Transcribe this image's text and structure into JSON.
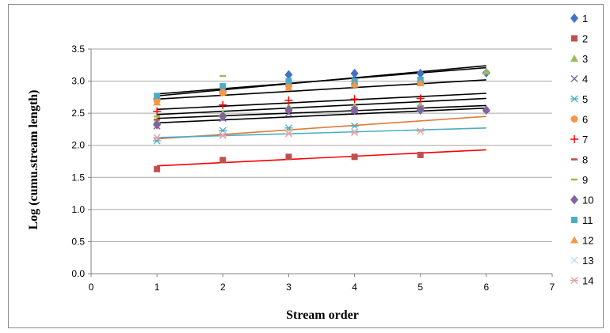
{
  "chart_data": {
    "type": "scatter",
    "title": "",
    "xlabel": "Stream order",
    "ylabel": "Log (cumu.stream length)",
    "xlim": [
      0,
      7
    ],
    "ylim": [
      0.0,
      3.5
    ],
    "xticks": [
      "0",
      "1",
      "2",
      "3",
      "4",
      "5",
      "6",
      "7"
    ],
    "yticks": [
      "0.0",
      "0.5",
      "1.0",
      "1.5",
      "2.0",
      "2.5",
      "3.0",
      "3.5"
    ],
    "grid": "horizontal",
    "legend_position": "right",
    "series": [
      {
        "name": "1",
        "marker": "diamond",
        "color": "#4472c4",
        "x": [
          1,
          2,
          3,
          4,
          5,
          6
        ],
        "y": [
          2.72,
          2.84,
          3.1,
          3.12,
          3.12,
          3.13
        ]
      },
      {
        "name": "2",
        "marker": "square",
        "color": "#c0504d",
        "x": [
          1,
          2,
          3,
          4,
          5
        ],
        "y": [
          1.63,
          1.77,
          1.82,
          1.82,
          1.85
        ]
      },
      {
        "name": "3",
        "marker": "triangle",
        "color": "#9bbb59",
        "x": [
          1,
          2,
          3,
          4,
          5,
          6
        ],
        "y": [
          2.38,
          2.5,
          2.6,
          2.6,
          2.63,
          3.15
        ]
      },
      {
        "name": "4",
        "marker": "x",
        "color": "#8064a2",
        "x": [
          1,
          2,
          3,
          4,
          5
        ],
        "y": [
          2.3,
          2.42,
          2.5,
          2.55,
          2.57
        ]
      },
      {
        "name": "5",
        "marker": "star",
        "color": "#4bacc6",
        "x": [
          1,
          2,
          3,
          4
        ],
        "y": [
          2.07,
          2.23,
          2.27,
          2.3
        ]
      },
      {
        "name": "6",
        "marker": "circle",
        "color": "#f79646",
        "x": [
          1,
          2,
          3,
          4,
          5
        ],
        "y": [
          2.7,
          2.82,
          2.93,
          2.95,
          2.98
        ]
      },
      {
        "name": "7",
        "marker": "plus",
        "color": "#ff0000",
        "x": [
          1,
          2,
          3,
          4,
          5
        ],
        "y": [
          2.53,
          2.63,
          2.7,
          2.72,
          2.73
        ]
      },
      {
        "name": "8",
        "marker": "dash",
        "color": "#c0504d",
        "x": [
          1,
          2,
          3,
          4,
          5,
          6
        ],
        "y": [
          2.4,
          2.47,
          2.53,
          2.53,
          2.55,
          2.53
        ]
      },
      {
        "name": "9",
        "marker": "dash",
        "color": "#9bbb59",
        "x": [
          1,
          2,
          3
        ],
        "y": [
          2.45,
          3.08,
          3.0
        ]
      },
      {
        "name": "10",
        "marker": "diamond",
        "color": "#8064a2",
        "x": [
          1,
          2,
          3,
          4,
          5,
          6
        ],
        "y": [
          2.32,
          2.45,
          2.55,
          2.55,
          2.55,
          2.55
        ]
      },
      {
        "name": "11",
        "marker": "square",
        "color": "#4bacc6",
        "x": [
          1,
          2,
          3,
          4,
          5
        ],
        "y": [
          2.77,
          2.92,
          3.0,
          3.0,
          3.02
        ]
      },
      {
        "name": "12",
        "marker": "triangle",
        "color": "#f79646",
        "x": [
          1,
          2,
          3,
          4,
          5
        ],
        "y": [
          2.67,
          2.83,
          2.9,
          2.95,
          2.97
        ]
      },
      {
        "name": "13",
        "marker": "x",
        "color": "#c5d9f1",
        "x": [
          1,
          2,
          3,
          4
        ],
        "y": [
          2.12,
          2.17,
          2.2,
          2.22
        ]
      },
      {
        "name": "14",
        "marker": "star",
        "color": "#e6a0a0",
        "x": [
          1,
          2,
          3,
          4,
          5
        ],
        "y": [
          2.12,
          2.15,
          2.18,
          2.2,
          2.22
        ]
      }
    ],
    "trendlines": [
      {
        "series": "1",
        "color": "#000000",
        "x": [
          1,
          6
        ],
        "y": [
          2.77,
          3.24
        ]
      },
      {
        "series": "11",
        "color": "#000000",
        "x": [
          1,
          6
        ],
        "y": [
          2.8,
          3.21
        ]
      },
      {
        "series": "6",
        "color": "#000000",
        "x": [
          1,
          6
        ],
        "y": [
          2.72,
          3.02
        ]
      },
      {
        "series": "7",
        "color": "#000000",
        "x": [
          1,
          6
        ],
        "y": [
          2.56,
          2.81
        ]
      },
      {
        "series": "3",
        "color": "#000000",
        "x": [
          1,
          6
        ],
        "y": [
          2.48,
          2.73
        ]
      },
      {
        "series": "10",
        "color": "#000000",
        "x": [
          1,
          6
        ],
        "y": [
          2.42,
          2.62
        ]
      },
      {
        "series": "4",
        "color": "#000000",
        "x": [
          1,
          6
        ],
        "y": [
          2.35,
          2.58
        ]
      },
      {
        "series": "5",
        "color": "#e07b39",
        "x": [
          1,
          6
        ],
        "y": [
          2.1,
          2.45
        ]
      },
      {
        "series": "13",
        "color": "#4bacc6",
        "x": [
          1,
          6
        ],
        "y": [
          2.12,
          2.27
        ]
      },
      {
        "series": "2",
        "color": "#ff0000",
        "x": [
          1,
          6
        ],
        "y": [
          1.68,
          1.93
        ]
      }
    ]
  }
}
